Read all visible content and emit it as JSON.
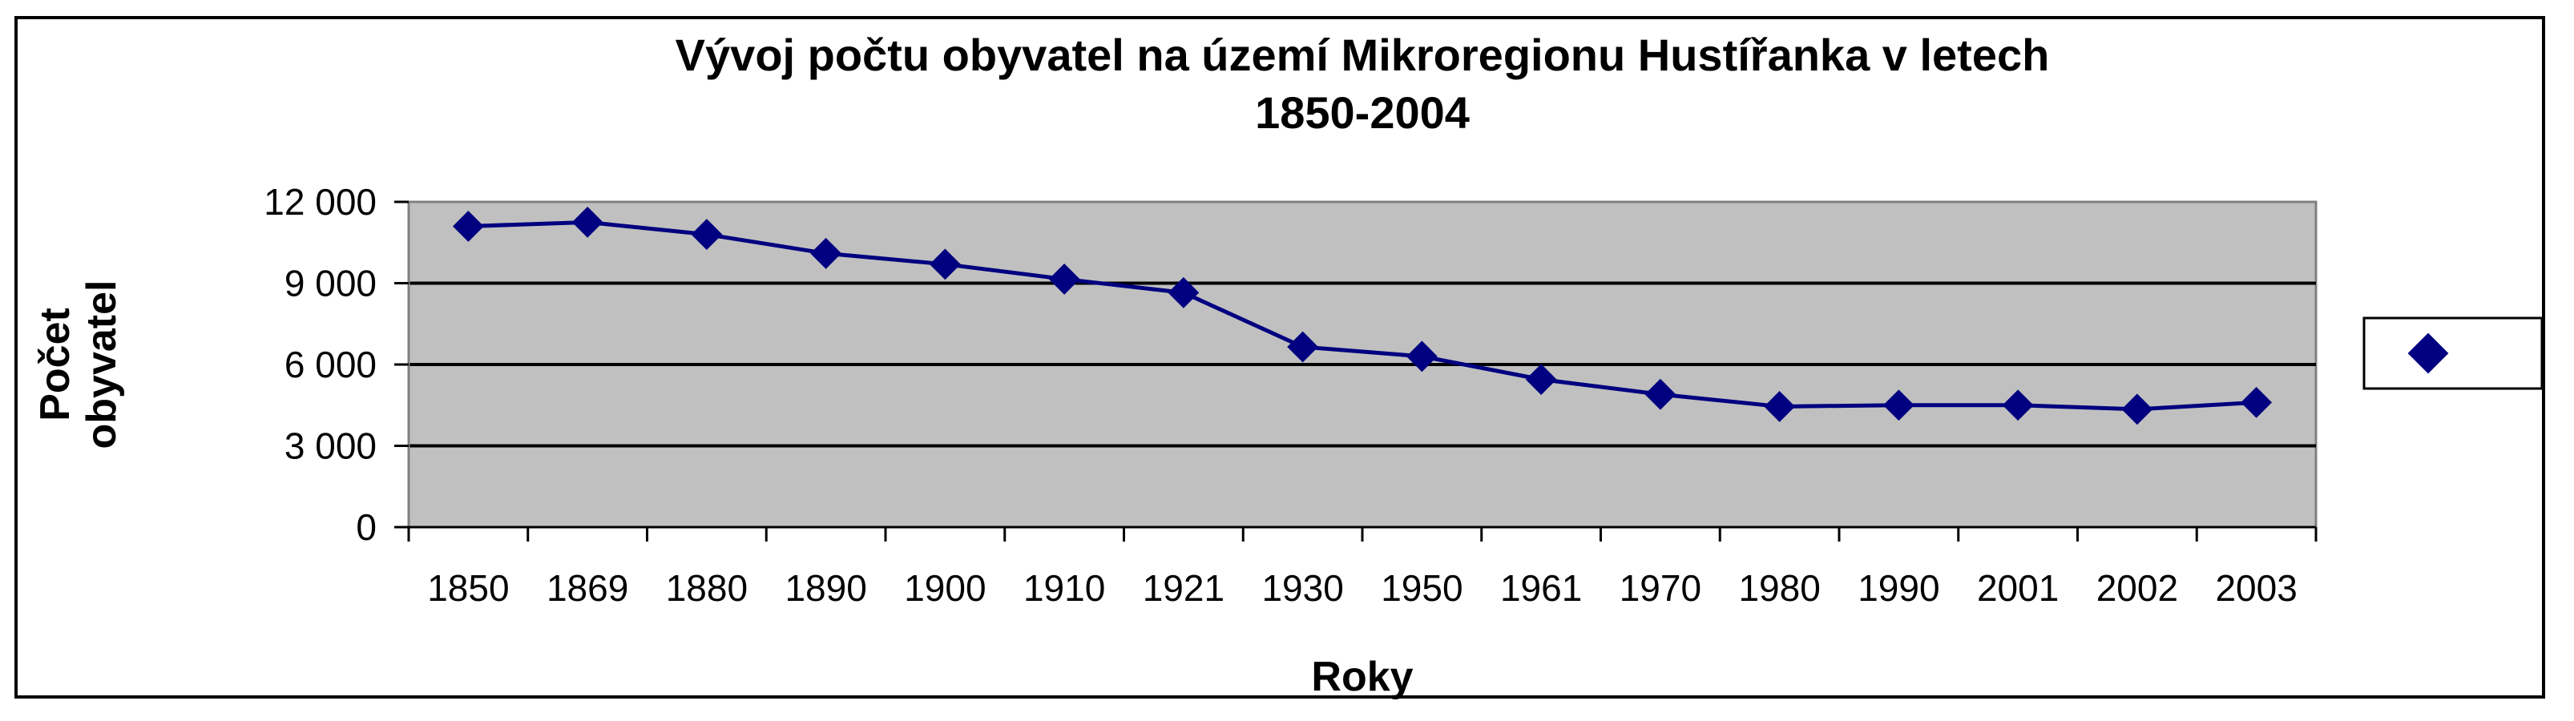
{
  "chart_data": {
    "type": "line",
    "title_line1": "Vývoj počtu obyvatel na území Mikroregionu Hustířanka v letech",
    "title_line2": "1850-2004",
    "xlabel": "Roky",
    "ylabel_line1": "Počet",
    "ylabel_line2": "obyvatel",
    "categories": [
      "1850",
      "1869",
      "1880",
      "1890",
      "1900",
      "1910",
      "1921",
      "1930",
      "1950",
      "1961",
      "1970",
      "1980",
      "1990",
      "2001",
      "2002",
      "2003"
    ],
    "y_ticks": [
      "0",
      "3 000",
      "6 000",
      "9 000",
      "12 000"
    ],
    "y_tick_values": [
      0,
      3000,
      6000,
      9000,
      12000
    ],
    "ylim": [
      0,
      12000
    ],
    "grid": true,
    "legend": "right",
    "series": [
      {
        "values": [
          11100,
          11250,
          10800,
          10100,
          9700,
          9150,
          8650,
          6650,
          6300,
          5450,
          4900,
          4450,
          4500,
          4500,
          4350,
          4600
        ],
        "color": "#000080",
        "marker": "diamond"
      }
    ],
    "plot_background": "#c0c0c0",
    "gridline_color": "#000000"
  }
}
